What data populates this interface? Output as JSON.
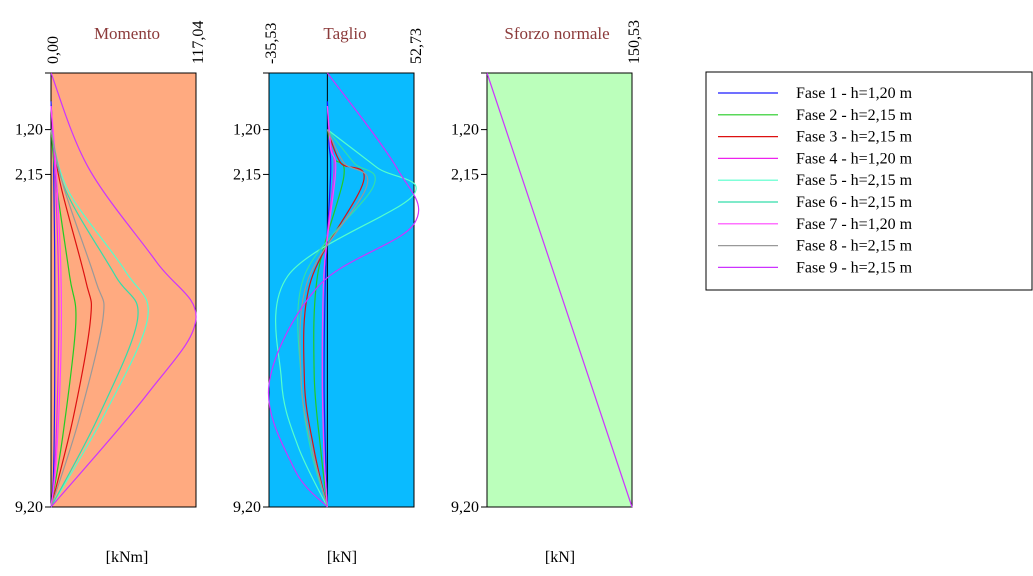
{
  "colors": {
    "moment_bg": "#ffaa80",
    "shear_bg": "#0abbff",
    "normal_bg": "#bbffbb",
    "phase_colors": [
      "#1a1aff",
      "#22cc22",
      "#dd1111",
      "#ee22ee",
      "#55ffcc",
      "#33ddaa",
      "#ff44ff",
      "#999999",
      "#cc33ff"
    ]
  },
  "depth_ticks": [
    {
      "value": 0.0,
      "label": ""
    },
    {
      "value": 1.2,
      "label": "1,20"
    },
    {
      "value": 2.15,
      "label": "2,15"
    },
    {
      "value": 9.2,
      "label": "9,20"
    }
  ],
  "legend": [
    "Fase 1 - h=1,20 m",
    "Fase 2 - h=2,15 m",
    "Fase 3 - h=2,15 m",
    "Fase 4 - h=1,20 m",
    "Fase 5 - h=2,15 m",
    "Fase 6 - h=2,15 m",
    "Fase 7 - h=1,20 m",
    "Fase 8 - h=2,15 m",
    "Fase 9 - h=2,15 m"
  ],
  "chart_data": [
    {
      "type": "line",
      "title": "Momento",
      "xlabel": "[kNm]",
      "xlim": [
        0.0,
        117.04
      ],
      "xlim_labels": [
        "0,00",
        "117,04"
      ],
      "ylim": [
        0.0,
        9.2
      ],
      "series": [
        {
          "name": "Fase 1 - h=1,20 m",
          "x": [
            0,
            2,
            3,
            3,
            2,
            0
          ],
          "y": [
            0.6,
            1.8,
            4.0,
            6.5,
            8.5,
            9.2
          ]
        },
        {
          "name": "Fase 2 - h=2,15 m",
          "x": [
            0,
            4,
            15,
            20,
            10,
            0
          ],
          "y": [
            1.2,
            2.3,
            4.3,
            5.3,
            7.6,
            9.2
          ]
        },
        {
          "name": "Fase 3 - h=2,15 m",
          "x": [
            0,
            8,
            28,
            32,
            18,
            0
          ],
          "y": [
            1.2,
            2.4,
            4.4,
            5.2,
            7.3,
            9.2
          ]
        },
        {
          "name": "Fase 4 - h=1,20 m",
          "x": [
            0,
            3,
            6,
            6,
            3,
            0
          ],
          "y": [
            0.7,
            2.0,
            4.2,
            6.0,
            8.4,
            9.2
          ]
        },
        {
          "name": "Fase 5 - h=2,15 m",
          "x": [
            0,
            14,
            60,
            78,
            42,
            0
          ],
          "y": [
            1.2,
            2.5,
            4.2,
            5.2,
            7.3,
            9.2
          ]
        },
        {
          "name": "Fase 6 - h=2,15 m",
          "x": [
            0,
            12,
            52,
            70,
            38,
            0
          ],
          "y": [
            1.2,
            2.5,
            4.3,
            5.2,
            7.3,
            9.2
          ]
        },
        {
          "name": "Fase 7 - h=1,20 m",
          "x": [
            0,
            4,
            8,
            8,
            4,
            0
          ],
          "y": [
            0.7,
            2.0,
            4.2,
            6.0,
            8.3,
            9.2
          ]
        },
        {
          "name": "Fase 8 - h=2,15 m",
          "x": [
            0,
            10,
            36,
            42,
            22,
            0
          ],
          "y": [
            1.2,
            2.4,
            4.4,
            5.2,
            7.4,
            9.2
          ]
        },
        {
          "name": "Fase 9 - h=2,15 m",
          "x": [
            0,
            30,
            85,
            117.04,
            78,
            0
          ],
          "y": [
            0.0,
            2.0,
            4.0,
            5.2,
            6.8,
            9.2
          ]
        }
      ]
    },
    {
      "type": "line",
      "title": "Taglio",
      "xlabel": "[kN]",
      "xlim": [
        -35.53,
        52.73
      ],
      "xlim_labels": [
        "-35,53",
        "52,73"
      ],
      "ylim": [
        0.0,
        9.2
      ],
      "series": [
        {
          "name": "Fase 1 - h=1,20 m",
          "x": [
            0,
            1,
            2,
            -1,
            -2,
            -1,
            0
          ],
          "y": [
            0.6,
            1.5,
            2.1,
            4.2,
            6.5,
            8.2,
            9.2
          ]
        },
        {
          "name": "Fase 2 - h=2,15 m",
          "x": [
            0,
            4,
            10,
            -6,
            -8,
            -4,
            0
          ],
          "y": [
            1.2,
            1.8,
            2.2,
            4.3,
            6.4,
            8.0,
            9.2
          ]
        },
        {
          "name": "Fase 3 - h=2,15 m",
          "x": [
            0,
            8,
            22,
            -10,
            -14,
            -8,
            0
          ],
          "y": [
            1.2,
            1.9,
            2.3,
            4.4,
            6.5,
            8.0,
            9.2
          ]
        },
        {
          "name": "Fase 4 - h=1,20 m",
          "x": [
            0,
            2,
            4,
            -2,
            -3,
            -2,
            0
          ],
          "y": [
            0.7,
            1.5,
            2.1,
            4.2,
            6.5,
            8.1,
            9.2
          ]
        },
        {
          "name": "Fase 5 - h=2,15 m",
          "x": [
            0,
            30,
            52,
            -24,
            -28,
            -18,
            0
          ],
          "y": [
            1.2,
            2.0,
            2.6,
            4.3,
            6.5,
            7.9,
            9.2
          ]
        },
        {
          "name": "Fase 6 - h=2,15 m",
          "x": [
            0,
            16,
            28,
            -14,
            -16,
            -10,
            0
          ],
          "y": [
            1.2,
            1.9,
            2.4,
            4.3,
            6.5,
            8.0,
            9.2
          ]
        },
        {
          "name": "Fase 7 - h=1,20 m",
          "x": [
            0,
            2,
            5,
            -2,
            -3,
            -2,
            0
          ],
          "y": [
            0.7,
            1.6,
            2.1,
            4.2,
            6.5,
            8.1,
            9.2
          ]
        },
        {
          "name": "Fase 8 - h=2,15 m",
          "x": [
            0,
            10,
            24,
            -12,
            -16,
            -9,
            0
          ],
          "y": [
            1.2,
            1.9,
            2.4,
            4.4,
            6.5,
            8.0,
            9.2
          ]
        },
        {
          "name": "Fase 9 - h=2,15 m",
          "x": [
            0,
            42,
            52.73,
            -5,
            -35.53,
            -20,
            0
          ],
          "y": [
            0.0,
            2.0,
            3.2,
            4.5,
            6.6,
            8.4,
            9.2
          ]
        }
      ]
    },
    {
      "type": "line",
      "title": "Sforzo normale",
      "xlabel": "[kN]",
      "xlim": [
        0.0,
        150.53
      ],
      "xlim_labels": [
        "",
        "150,53"
      ],
      "ylim": [
        0.0,
        9.2
      ],
      "series": [
        {
          "name": "Fase 9 - h=2,15 m",
          "x": [
            0,
            150.53
          ],
          "y": [
            0.0,
            9.2
          ]
        }
      ]
    }
  ]
}
